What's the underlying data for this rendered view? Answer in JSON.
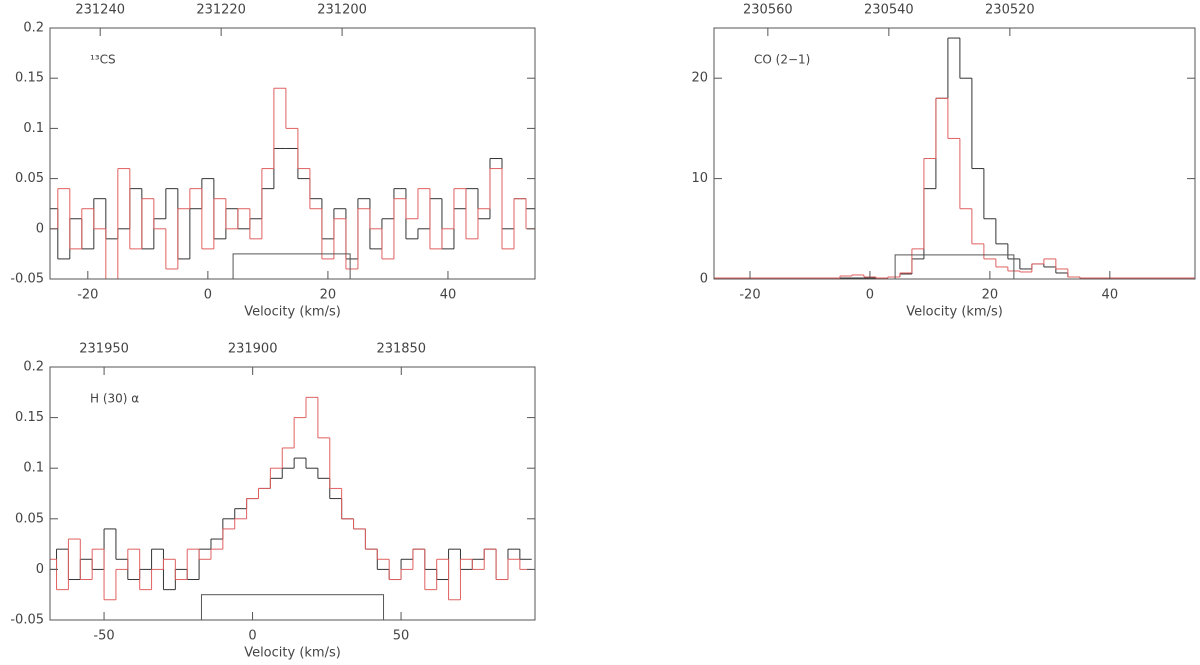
{
  "chart_data": [
    {
      "type": "step",
      "annotation": "¹³CS",
      "xlabel": "Velocity (km/s)",
      "xlim": [
        -26.3,
        54.5
      ],
      "xticks": [
        -20,
        0,
        20,
        40
      ],
      "x2lim": [
        231248.3,
        231168.1
      ],
      "x2ticks": [
        231240,
        231220,
        231200
      ],
      "ylim": [
        -0.05,
        0.2
      ],
      "yticks": [
        -0.05,
        0,
        0.05,
        0.1,
        0.15,
        0.2
      ],
      "window": {
        "x": [
          4.2,
          23.7
        ],
        "top": -0.025
      },
      "x": [
        -26,
        -24,
        -22,
        -20,
        -18,
        -16,
        -14,
        -12,
        -10,
        -8,
        -6,
        -4,
        -2,
        0,
        2,
        4,
        6,
        8,
        10,
        12,
        14,
        16,
        18,
        20,
        22,
        24,
        26,
        28,
        30,
        32,
        34,
        36,
        38,
        40,
        42,
        44,
        46,
        48,
        50,
        52,
        54
      ],
      "series": [
        {
          "color": "#333333",
          "values": [
            0.02,
            -0.03,
            0.01,
            -0.02,
            0.03,
            -0.01,
            0.0,
            0.04,
            -0.02,
            0.01,
            0.04,
            -0.03,
            0.02,
            0.05,
            -0.01,
            0.02,
            0.0,
            0.01,
            0.04,
            0.08,
            0.08,
            0.05,
            0.03,
            -0.01,
            0.02,
            -0.03,
            0.03,
            -0.02,
            0.01,
            0.04,
            -0.01,
            0.0,
            0.03,
            -0.02,
            0.02,
            0.04,
            0.01,
            0.07,
            0.0,
            0.03,
            0.02
          ]
        },
        {
          "color": "#e06060",
          "values": [
            0.0,
            0.04,
            -0.02,
            0.02,
            0.0,
            -0.05,
            0.06,
            -0.02,
            0.03,
            0.0,
            -0.04,
            0.02,
            0.04,
            -0.02,
            0.03,
            0.0,
            0.02,
            -0.01,
            0.06,
            0.14,
            0.1,
            0.06,
            0.02,
            -0.03,
            0.01,
            -0.04,
            0.02,
            0.0,
            -0.03,
            0.03,
            0.01,
            0.04,
            -0.02,
            0.0,
            0.04,
            -0.01,
            0.02,
            0.06,
            -0.02,
            0.03,
            0.0
          ]
        }
      ]
    },
    {
      "type": "step",
      "annotation": "CO (2−1)",
      "xlabel": "Velocity (km/s)",
      "xlim": [
        -26,
        54.2
      ],
      "xticks": [
        -20,
        0,
        20,
        40
      ],
      "x2lim": [
        230568.9,
        230489.4
      ],
      "x2ticks": [
        230560,
        230540,
        230520
      ],
      "ylim": [
        0,
        25
      ],
      "yticks": [
        0,
        10,
        20
      ],
      "window": {
        "x": [
          4.2,
          24
        ],
        "top": 2.4
      },
      "x": [
        -26,
        -24,
        -22,
        -20,
        -18,
        -16,
        -14,
        -12,
        -10,
        -8,
        -6,
        -4,
        -2,
        0,
        2,
        4,
        6,
        8,
        10,
        12,
        14,
        16,
        18,
        20,
        22,
        24,
        26,
        28,
        30,
        32,
        34,
        36,
        38,
        40,
        42,
        44,
        46,
        48,
        50,
        52,
        54
      ],
      "series": [
        {
          "color": "#333333",
          "values": [
            0.1,
            0.1,
            0.1,
            0.1,
            0.1,
            0.1,
            0.1,
            0.1,
            0.1,
            0.1,
            0.1,
            0.1,
            0.1,
            0.1,
            0.1,
            0.2,
            0.5,
            2,
            9,
            18,
            24,
            20,
            11,
            6,
            3.5,
            2,
            1,
            1.5,
            1.2,
            0.6,
            0.2,
            0.1,
            0.1,
            0.1,
            0.1,
            0.1,
            0.1,
            0.1,
            0.1,
            0.1,
            0.1
          ]
        },
        {
          "color": "#e06060",
          "values": [
            0.1,
            0.1,
            0.1,
            0.1,
            0.1,
            0.1,
            0.1,
            0.1,
            0.1,
            0.1,
            0.1,
            0.3,
            0.4,
            0.2,
            0.1,
            0.2,
            0.6,
            3,
            12,
            18,
            14,
            7,
            3.5,
            2,
            1.2,
            0.8,
            0.7,
            1.5,
            2,
            1,
            0.2,
            0.1,
            0.1,
            0.1,
            0.1,
            0.1,
            0.1,
            0.1,
            0.1,
            0.1,
            0.1
          ]
        }
      ]
    },
    {
      "type": "step",
      "annotation": "H (30) α",
      "xlabel": "Velocity (km/s)",
      "xlim": [
        -68.2,
        95.1
      ],
      "xticks": [
        -50,
        0,
        50
      ],
      "x2lim": [
        231968.2,
        231805
      ],
      "x2ticks": [
        231950,
        231900,
        231850
      ],
      "ylim": [
        -0.05,
        0.2
      ],
      "yticks": [
        -0.05,
        0,
        0.05,
        0.1,
        0.15,
        0.2
      ],
      "window": {
        "x": [
          -17.2,
          44.1
        ],
        "top": -0.025
      },
      "x": [
        -68,
        -64,
        -60,
        -56,
        -52,
        -48,
        -44,
        -40,
        -36,
        -32,
        -28,
        -24,
        -20,
        -16,
        -12,
        -8,
        -4,
        0,
        4,
        8,
        12,
        16,
        20,
        24,
        28,
        32,
        36,
        40,
        44,
        48,
        52,
        56,
        60,
        64,
        68,
        72,
        76,
        80,
        84,
        88,
        92
      ],
      "series": [
        {
          "color": "#333333",
          "values": [
            0.0,
            0.02,
            -0.01,
            0.01,
            0.0,
            0.04,
            0.01,
            -0.01,
            0.0,
            0.02,
            -0.02,
            0.0,
            -0.01,
            0.02,
            0.03,
            0.05,
            0.06,
            0.07,
            0.08,
            0.09,
            0.1,
            0.11,
            0.1,
            0.09,
            0.07,
            0.05,
            0.04,
            0.02,
            0.0,
            -0.01,
            0.01,
            0.02,
            0.0,
            -0.01,
            0.02,
            0.0,
            0.01,
            0.02,
            -0.01,
            0.02,
            0.01
          ]
        },
        {
          "color": "#e06060",
          "values": [
            0.01,
            -0.02,
            0.03,
            -0.01,
            0.02,
            -0.03,
            0.0,
            0.02,
            -0.02,
            0.0,
            0.01,
            -0.01,
            0.02,
            0.01,
            0.02,
            0.04,
            0.05,
            0.07,
            0.08,
            0.1,
            0.12,
            0.15,
            0.17,
            0.13,
            0.08,
            0.05,
            0.04,
            0.02,
            0.01,
            -0.01,
            0.0,
            0.02,
            -0.02,
            0.01,
            -0.03,
            0.01,
            0.0,
            0.02,
            -0.01,
            0.01,
            0.0
          ]
        }
      ]
    }
  ]
}
